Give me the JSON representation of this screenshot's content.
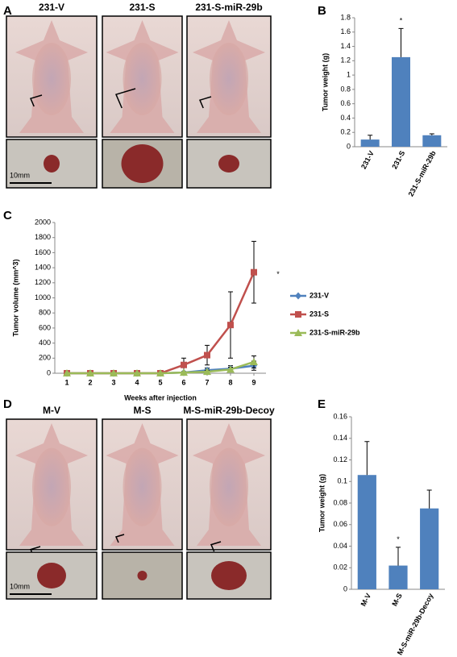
{
  "panels": [
    "A",
    "B",
    "C",
    "D",
    "E"
  ],
  "photos_top": {
    "labels": [
      "231-V",
      "231-S",
      "231-S-miR-29b"
    ],
    "scale": "10mm"
  },
  "photos_bottom": {
    "labels": [
      "M-V",
      "M-S",
      "M-S-miR-29b-Decoy"
    ],
    "scale": "10mm"
  },
  "chart_data": [
    {
      "type": "bar",
      "ylabel": "Tumor weight (g)",
      "categories": [
        "231-V",
        "231-S",
        "231-S-miR-29b"
      ],
      "values": [
        0.1,
        1.25,
        0.16
      ],
      "errors": [
        0.06,
        0.4,
        0.02
      ],
      "color": "#4f81bd",
      "ylim": [
        0,
        1.8
      ],
      "yticks": [
        0,
        0.2,
        0.4,
        0.6,
        0.8,
        1,
        1.2,
        1.4,
        1.6,
        1.8
      ],
      "annotations": [
        {
          "text": "*",
          "category": "231-S"
        }
      ]
    },
    {
      "type": "line",
      "ylabel": "Tumor volume (mm^3)",
      "xlabel": "Weeks after injection",
      "x": [
        1,
        2,
        3,
        4,
        5,
        6,
        7,
        8,
        9
      ],
      "series": [
        {
          "name": "231-V",
          "color": "#4f81bd",
          "marker": "diamond",
          "values": [
            0,
            0,
            0,
            0,
            0,
            10,
            40,
            60,
            100
          ],
          "errors": [
            0,
            0,
            0,
            0,
            0,
            10,
            30,
            40,
            60
          ]
        },
        {
          "name": "231-S",
          "color": "#c0504d",
          "marker": "square",
          "values": [
            0,
            0,
            0,
            0,
            0,
            110,
            240,
            640,
            1340
          ],
          "errors": [
            0,
            0,
            0,
            0,
            0,
            90,
            130,
            440,
            410
          ]
        },
        {
          "name": "231-S-miR-29b",
          "color": "#9bbb59",
          "marker": "triangle",
          "values": [
            0,
            0,
            0,
            0,
            0,
            10,
            20,
            50,
            150
          ],
          "errors": [
            0,
            0,
            0,
            0,
            0,
            10,
            20,
            30,
            80
          ]
        }
      ],
      "ylim": [
        0,
        2000
      ],
      "yticks": [
        0,
        200,
        400,
        600,
        800,
        1000,
        1200,
        1400,
        1600,
        1800,
        2000
      ],
      "xlim": [
        1,
        9
      ],
      "xticks": [
        1,
        2,
        3,
        4,
        5,
        6,
        7,
        8,
        9
      ],
      "annotations": [
        {
          "text": "*",
          "series": "231-S"
        }
      ]
    },
    {
      "type": "bar",
      "ylabel": "Tumor weight (g)",
      "categories": [
        "M-V",
        "M-S",
        "M-S-miR-29b-Decoy"
      ],
      "values": [
        0.106,
        0.022,
        0.075
      ],
      "errors": [
        0.031,
        0.017,
        0.017
      ],
      "color": "#4f81bd",
      "ylim": [
        0,
        0.16
      ],
      "yticks": [
        0,
        0.02,
        0.04,
        0.06,
        0.08,
        0.1,
        0.12,
        0.14,
        0.16
      ],
      "annotations": [
        {
          "text": "*",
          "category": "M-S"
        }
      ]
    }
  ]
}
